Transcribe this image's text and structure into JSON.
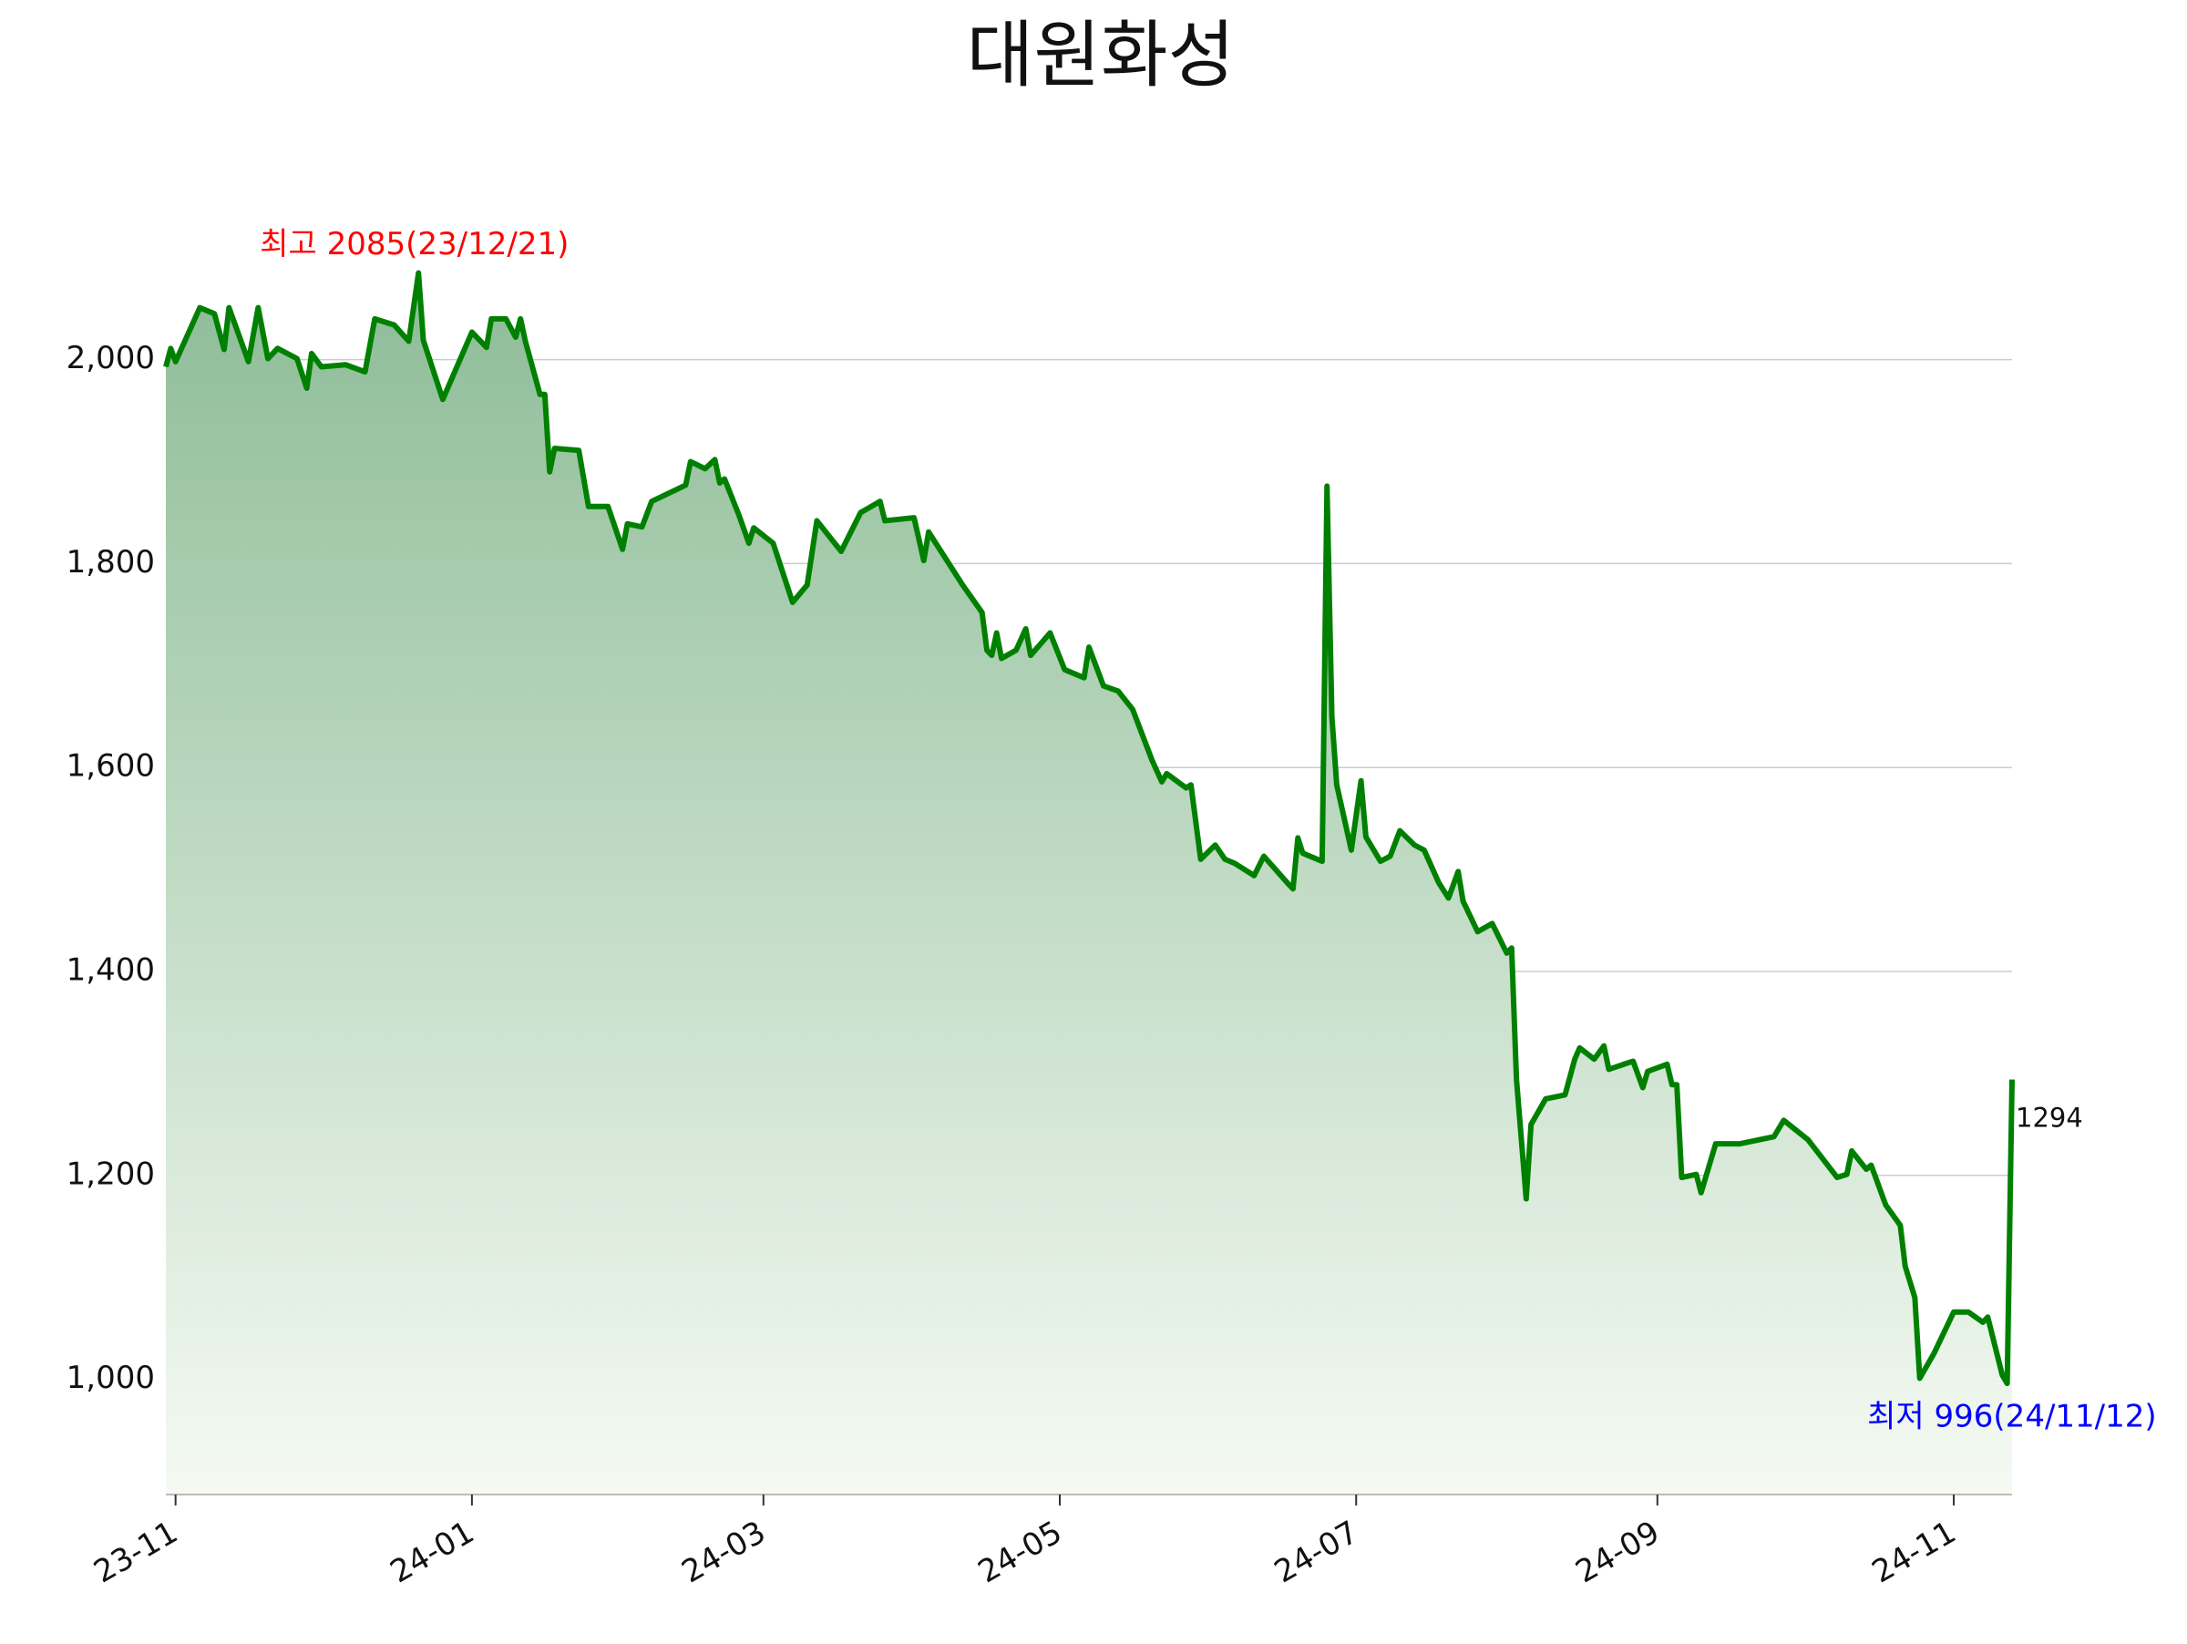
{
  "chart_data": {
    "type": "line",
    "title": "대원화성",
    "color": "#008000",
    "fill_gradient": [
      "#8dbc97",
      "#f5faf3"
    ],
    "grid": true,
    "xlim": [
      "23/10/30",
      "24/11/13"
    ],
    "ylim": [
      887,
      2140
    ],
    "yticks": [
      {
        "value": 1000,
        "label": "1,000"
      },
      {
        "value": 1200,
        "label": "1,200"
      },
      {
        "value": 1400,
        "label": "1,400"
      },
      {
        "value": 1600,
        "label": "1,600"
      },
      {
        "value": 1800,
        "label": "1,800"
      },
      {
        "value": 2000,
        "label": "2,000"
      }
    ],
    "xticks": [
      {
        "value": "23/11/01",
        "label": "23-11"
      },
      {
        "value": "24/01/01",
        "label": "24-01"
      },
      {
        "value": "24/03/01",
        "label": "24-03"
      },
      {
        "value": "24/05/01",
        "label": "24-05"
      },
      {
        "value": "24/07/01",
        "label": "24-07"
      },
      {
        "value": "24/09/01",
        "label": "24-09"
      },
      {
        "value": "24/11/01",
        "label": "24-11"
      }
    ],
    "annotations": {
      "max": {
        "text": "최고 2085(23/12/21)",
        "color": "#ff0000"
      },
      "min": {
        "text": "최저 996(24/11/12)",
        "color": "#0000ff"
      }
    },
    "x": [
      "23/10/30",
      "23/10/31",
      "23/11/01",
      "23/11/06",
      "23/11/09",
      "23/11/11",
      "23/11/12",
      "23/11/16",
      "23/11/18",
      "23/11/20",
      "23/11/22",
      "23/11/26",
      "23/11/28",
      "23/11/29",
      "23/12/01",
      "23/12/06",
      "23/12/10",
      "23/12/12",
      "23/12/16",
      "23/12/19",
      "23/12/21",
      "23/12/22",
      "23/12/26",
      "24/01/01",
      "24/01/04",
      "24/01/05",
      "24/01/08",
      "24/01/10",
      "24/01/11",
      "24/01/12",
      "24/01/15",
      "24/01/16",
      "24/01/17",
      "24/01/18",
      "24/01/23",
      "24/01/25",
      "24/01/29",
      "24/02/01",
      "24/02/02",
      "24/02/05",
      "24/02/07",
      "24/02/14",
      "24/02/15",
      "24/02/18",
      "24/02/20",
      "24/02/21",
      "24/02/22",
      "24/02/25",
      "24/02/27",
      "24/02/28",
      "24/03/03",
      "24/03/07",
      "24/03/10",
      "24/03/12",
      "24/03/17",
      "24/03/21",
      "24/03/25",
      "24/03/26",
      "24/04/01",
      "24/04/03",
      "24/04/04",
      "24/04/11",
      "24/04/15",
      "24/04/16",
      "24/04/17",
      "24/04/18",
      "24/04/19",
      "24/04/22",
      "24/04/24",
      "24/04/25",
      "24/04/29",
      "24/05/02",
      "24/05/06",
      "24/05/07",
      "24/05/10",
      "24/05/13",
      "24/05/16",
      "24/05/20",
      "24/05/22",
      "24/05/23",
      "24/05/27",
      "24/05/28",
      "24/05/30",
      "24/06/02",
      "24/06/04",
      "24/06/06",
      "24/06/10",
      "24/06/12",
      "24/06/17",
      "24/06/18",
      "24/06/19",
      "24/06/20",
      "24/06/24",
      "24/06/25",
      "24/06/26",
      "24/06/27",
      "24/06/30",
      "24/07/02",
      "24/07/03",
      "24/07/06",
      "24/07/08",
      "24/07/10",
      "24/07/13",
      "24/07/15",
      "24/07/18",
      "24/07/20",
      "24/07/22",
      "24/07/23",
      "24/07/26",
      "24/07/29",
      "24/08/01",
      "24/08/02",
      "24/08/03",
      "24/08/05",
      "24/08/06",
      "24/08/09",
      "24/08/13",
      "24/08/15",
      "24/08/16",
      "24/08/19",
      "24/08/21",
      "24/08/22",
      "24/08/27",
      "24/08/29",
      "24/08/30",
      "24/09/03",
      "24/09/04",
      "24/09/05",
      "24/09/06",
      "24/09/09",
      "24/09/10",
      "24/09/13",
      "24/09/18",
      "24/09/25",
      "24/09/27",
      "24/10/02",
      "24/10/08",
      "24/10/10",
      "24/10/11",
      "24/10/14",
      "24/10/15",
      "24/10/18",
      "24/10/21",
      "24/10/22",
      "24/10/24",
      "24/10/25",
      "24/10/28",
      "24/11/01",
      "24/11/04",
      "24/11/07",
      "24/11/08",
      "24/11/11",
      "24/11/12",
      "24/11/13"
    ],
    "values": [
      1993,
      2011,
      1998,
      2051,
      2045,
      2010,
      2051,
      1998,
      2051,
      2001,
      2011,
      2001,
      1972,
      2006,
      1993,
      1995,
      1988,
      2040,
      2034,
      2018,
      2085,
      2019,
      1961,
      2027,
      2012,
      2040,
      2040,
      2022,
      2040,
      2018,
      1966,
      1966,
      1890,
      1913,
      1911,
      1856,
      1856,
      1814,
      1839,
      1836,
      1861,
      1877,
      1900,
      1893,
      1902,
      1879,
      1883,
      1847,
      1820,
      1835,
      1820,
      1762,
      1779,
      1842,
      1812,
      1850,
      1861,
      1842,
      1845,
      1803,
      1831,
      1779,
      1752,
      1715,
      1710,
      1732,
      1707,
      1715,
      1736,
      1710,
      1732,
      1696,
      1688,
      1718,
      1680,
      1675,
      1657,
      1607,
      1586,
      1594,
      1580,
      1583,
      1510,
      1524,
      1510,
      1506,
      1494,
      1513,
      1486,
      1481,
      1531,
      1516,
      1508,
      1876,
      1650,
      1583,
      1519,
      1587,
      1532,
      1508,
      1513,
      1538,
      1524,
      1519,
      1487,
      1472,
      1498,
      1469,
      1439,
      1447,
      1418,
      1423,
      1294,
      1177,
      1250,
      1275,
      1279,
      1314,
      1325,
      1314,
      1327,
      1304,
      1312,
      1286,
      1302,
      1309,
      1289,
      1289,
      1198,
      1201,
      1183,
      1231,
      1231,
      1238,
      1254,
      1235,
      1198,
      1201,
      1224,
      1206,
      1210,
      1171,
      1151,
      1111,
      1080,
      1001,
      1026,
      1066,
      1066,
      1056,
      1061,
      1004,
      996,
      1294
    ]
  }
}
